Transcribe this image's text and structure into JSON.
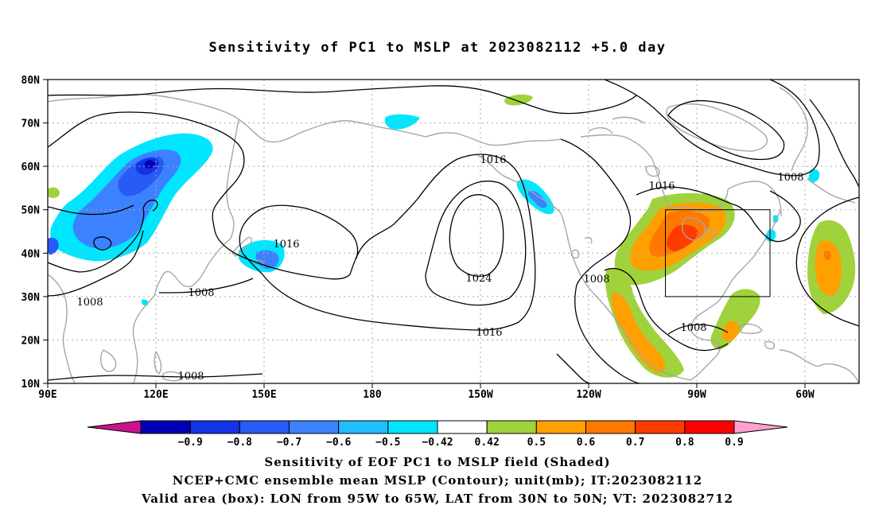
{
  "title": "Sensitivity of PC1 to MSLP at 2023082112 +5.0 day",
  "map": {
    "lat_labels": [
      "80N",
      "70N",
      "60N",
      "50N",
      "40N",
      "30N",
      "20N",
      "10N"
    ],
    "lon_labels": [
      "90E",
      "120E",
      "150E",
      "180",
      "150W",
      "120W",
      "90W",
      "60W"
    ],
    "contour_labels": [
      {
        "text": "1016",
        "pos": "upper-mid"
      },
      {
        "text": "1016",
        "pos": "west-pacific"
      },
      {
        "text": "1024",
        "pos": "high-center"
      },
      {
        "text": "1016",
        "pos": "south-pacific"
      },
      {
        "text": "1008",
        "pos": "asia-west"
      },
      {
        "text": "1008",
        "pos": "asia-mid"
      },
      {
        "text": "1008",
        "pos": "asia-south"
      },
      {
        "text": "1008",
        "pos": "na-west"
      },
      {
        "text": "1016",
        "pos": "canada"
      },
      {
        "text": "1008",
        "pos": "arctic"
      },
      {
        "text": "1008",
        "pos": "caribbean"
      }
    ],
    "valid_box": {
      "lon_from": "95W",
      "lon_to": "65W",
      "lat_from": "30N",
      "lat_to": "50N"
    }
  },
  "colorbar": {
    "colors": [
      "#c8148c",
      "#0000b4",
      "#1432e6",
      "#285af5",
      "#3c82ff",
      "#1ebeff",
      "#00e6ff",
      "#ffffff",
      "#a0d23c",
      "#ffa000",
      "#ff7800",
      "#ff3c00",
      "#ff0000",
      "#ffa0d2"
    ],
    "labels": [
      "−0.9",
      "−0.8",
      "−0.7",
      "−0.6",
      "−0.5",
      "−0.42",
      "0.42",
      "0.5",
      "0.6",
      "0.7",
      "0.8",
      "0.9"
    ]
  },
  "caption": {
    "line1": "Sensitivity of EOF PC1 to MSLP field (Shaded)",
    "line2": "NCEP+CMC ensemble mean MSLP (Contour); unit(mb); IT:2023082112",
    "line3": "Valid area (box): LON from 95W to 65W, LAT from 30N to 50N; VT: 2023082712"
  }
}
